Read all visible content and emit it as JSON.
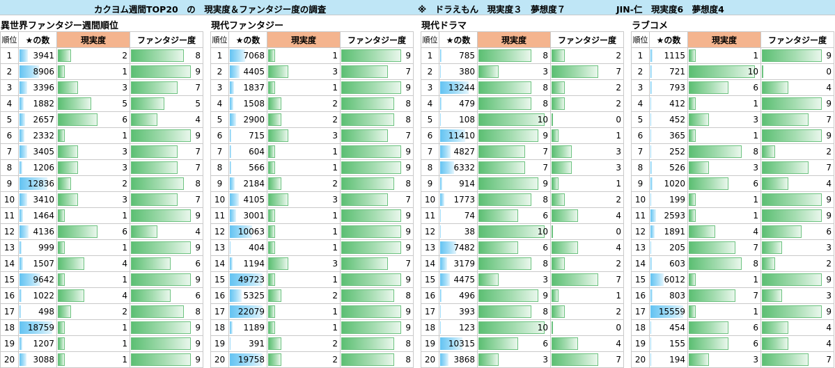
{
  "title": {
    "main": "カクヨム週間TOP20　の　現実度＆ファンタジー度の調査",
    "note1": "※　ドラえもん　現実度３　夢想度７",
    "note2": "JIN-仁　現実度6　夢想度4"
  },
  "headers": {
    "rank": "順位",
    "stars": "★の数",
    "reality": "現実度",
    "fantasy": "ファンタジー度"
  },
  "sections": [
    {
      "title": "異世界ファンタジー週間順位",
      "rows": [
        {
          "rank": "1",
          "stars": 3941,
          "reality": 2,
          "fantasy": 8
        },
        {
          "rank": "2",
          "stars": 8906,
          "reality": 1,
          "fantasy": 9
        },
        {
          "rank": "3",
          "stars": 3396,
          "reality": 3,
          "fantasy": 7
        },
        {
          "rank": "4",
          "stars": 1882,
          "reality": 5,
          "fantasy": 5
        },
        {
          "rank": "5",
          "stars": 2657,
          "reality": 6,
          "fantasy": 4
        },
        {
          "rank": "6",
          "stars": 2332,
          "reality": 1,
          "fantasy": 9
        },
        {
          "rank": "7",
          "stars": 3405,
          "reality": 3,
          "fantasy": 7
        },
        {
          "rank": "8",
          "stars": 1206,
          "reality": 3,
          "fantasy": 7
        },
        {
          "rank": "9",
          "stars": 12836,
          "reality": 2,
          "fantasy": 8
        },
        {
          "rank": "10",
          "stars": 3410,
          "reality": 3,
          "fantasy": 7
        },
        {
          "rank": "11",
          "stars": 1464,
          "reality": 1,
          "fantasy": 9
        },
        {
          "rank": "12",
          "stars": 4136,
          "reality": 6,
          "fantasy": 4
        },
        {
          "rank": "13",
          "stars": 999,
          "reality": 1,
          "fantasy": 9
        },
        {
          "rank": "14",
          "stars": 1507,
          "reality": 4,
          "fantasy": 6
        },
        {
          "rank": "15",
          "stars": 9642,
          "reality": 1,
          "fantasy": 9
        },
        {
          "rank": "16",
          "stars": 1022,
          "reality": 4,
          "fantasy": 6
        },
        {
          "rank": "17",
          "stars": 498,
          "reality": 2,
          "fantasy": 8
        },
        {
          "rank": "18",
          "stars": 18759,
          "reality": 1,
          "fantasy": 9
        },
        {
          "rank": "19",
          "stars": 1207,
          "reality": 1,
          "fantasy": 9
        },
        {
          "rank": "20",
          "stars": 3088,
          "reality": 1,
          "fantasy": 9
        }
      ]
    },
    {
      "title": "現代ファンタジー",
      "rows": [
        {
          "rank": "1",
          "stars": 7068,
          "reality": 1,
          "fantasy": 9
        },
        {
          "rank": "2",
          "stars": 4405,
          "reality": 3,
          "fantasy": 7
        },
        {
          "rank": "3",
          "stars": 1837,
          "reality": 1,
          "fantasy": 9
        },
        {
          "rank": "4",
          "stars": 1508,
          "reality": 2,
          "fantasy": 8
        },
        {
          "rank": "5",
          "stars": 2900,
          "reality": 2,
          "fantasy": 8
        },
        {
          "rank": "6",
          "stars": 715,
          "reality": 3,
          "fantasy": 7
        },
        {
          "rank": "7",
          "stars": 604,
          "reality": 1,
          "fantasy": 9
        },
        {
          "rank": "8",
          "stars": 566,
          "reality": 1,
          "fantasy": 9
        },
        {
          "rank": "9",
          "stars": 2184,
          "reality": 2,
          "fantasy": 8
        },
        {
          "rank": "10",
          "stars": 4105,
          "reality": 3,
          "fantasy": 7
        },
        {
          "rank": "11",
          "stars": 3001,
          "reality": 1,
          "fantasy": 9
        },
        {
          "rank": "12",
          "stars": 10063,
          "reality": 1,
          "fantasy": 9
        },
        {
          "rank": "13",
          "stars": 404,
          "reality": 1,
          "fantasy": 9
        },
        {
          "rank": "14",
          "stars": 1194,
          "reality": 3,
          "fantasy": 7
        },
        {
          "rank": "15",
          "stars": 49723,
          "reality": 1,
          "fantasy": 9
        },
        {
          "rank": "16",
          "stars": 5325,
          "reality": 2,
          "fantasy": 8
        },
        {
          "rank": "17",
          "stars": 22079,
          "reality": 1,
          "fantasy": 9
        },
        {
          "rank": "18",
          "stars": 1189,
          "reality": 1,
          "fantasy": 9
        },
        {
          "rank": "19",
          "stars": 391,
          "reality": 2,
          "fantasy": 8
        },
        {
          "rank": "20",
          "stars": 19758,
          "reality": 2,
          "fantasy": 8
        }
      ]
    },
    {
      "title": "現代ドラマ",
      "rows": [
        {
          "rank": "1",
          "stars": 785,
          "reality": 8,
          "fantasy": 2
        },
        {
          "rank": "2",
          "stars": 380,
          "reality": 3,
          "fantasy": 7
        },
        {
          "rank": "3",
          "stars": 13244,
          "reality": 8,
          "fantasy": 2
        },
        {
          "rank": "4",
          "stars": 479,
          "reality": 8,
          "fantasy": 2
        },
        {
          "rank": "5",
          "stars": 108,
          "reality": 10,
          "fantasy": 0
        },
        {
          "rank": "6",
          "stars": 11410,
          "reality": 9,
          "fantasy": 1
        },
        {
          "rank": "7",
          "stars": 4827,
          "reality": 7,
          "fantasy": 3
        },
        {
          "rank": "8",
          "stars": 6332,
          "reality": 7,
          "fantasy": 3
        },
        {
          "rank": "9",
          "stars": 914,
          "reality": 9,
          "fantasy": 1
        },
        {
          "rank": "10",
          "stars": 1773,
          "reality": 8,
          "fantasy": 2
        },
        {
          "rank": "11",
          "stars": 74,
          "reality": 6,
          "fantasy": 4
        },
        {
          "rank": "12",
          "stars": 38,
          "reality": 10,
          "fantasy": 0
        },
        {
          "rank": "13",
          "stars": 7482,
          "reality": 6,
          "fantasy": 4
        },
        {
          "rank": "14",
          "stars": 3179,
          "reality": 8,
          "fantasy": 2
        },
        {
          "rank": "15",
          "stars": 4475,
          "reality": 3,
          "fantasy": 7
        },
        {
          "rank": "16",
          "stars": 496,
          "reality": 9,
          "fantasy": 1
        },
        {
          "rank": "17",
          "stars": 393,
          "reality": 8,
          "fantasy": 2
        },
        {
          "rank": "18",
          "stars": 123,
          "reality": 10,
          "fantasy": 0
        },
        {
          "rank": "19",
          "stars": 10315,
          "reality": 6,
          "fantasy": 4
        },
        {
          "rank": "20",
          "stars": 3868,
          "reality": 3,
          "fantasy": 7
        }
      ]
    },
    {
      "title": "ラブコメ",
      "rows": [
        {
          "rank": "1",
          "stars": 1115,
          "reality": 1,
          "fantasy": 9
        },
        {
          "rank": "2",
          "stars": 721,
          "reality": 10,
          "fantasy": 0
        },
        {
          "rank": "3",
          "stars": 793,
          "reality": 6,
          "fantasy": 4
        },
        {
          "rank": "4",
          "stars": 412,
          "reality": 1,
          "fantasy": 9
        },
        {
          "rank": "5",
          "stars": 452,
          "reality": 3,
          "fantasy": 7
        },
        {
          "rank": "6",
          "stars": 365,
          "reality": 1,
          "fantasy": 9
        },
        {
          "rank": "7",
          "stars": 252,
          "reality": 8,
          "fantasy": 2
        },
        {
          "rank": "8",
          "stars": 526,
          "reality": 3,
          "fantasy": 7
        },
        {
          "rank": "9",
          "stars": 1020,
          "reality": 6,
          "fantasy": 4
        },
        {
          "rank": "10",
          "stars": 199,
          "reality": 1,
          "fantasy": 9
        },
        {
          "rank": "11",
          "stars": 2593,
          "reality": 1,
          "fantasy": 9
        },
        {
          "rank": "12",
          "stars": 1891,
          "reality": 4,
          "fantasy": 6
        },
        {
          "rank": "13",
          "stars": 205,
          "reality": 7,
          "fantasy": 3
        },
        {
          "rank": "14",
          "stars": 603,
          "reality": 8,
          "fantasy": 2
        },
        {
          "rank": "15",
          "stars": 6012,
          "reality": 1,
          "fantasy": 9
        },
        {
          "rank": "16",
          "stars": 803,
          "reality": 7,
          "fantasy": 3
        },
        {
          "rank": "17",
          "stars": 15559,
          "reality": 1,
          "fantasy": 9
        },
        {
          "rank": "18",
          "stars": 454,
          "reality": 6,
          "fantasy": 4
        },
        {
          "rank": "19",
          "stars": 155,
          "reality": 6,
          "fantasy": 4
        },
        {
          "rank": "20",
          "stars": 194,
          "reality": 3,
          "fantasy": 7
        }
      ]
    }
  ],
  "colors": {
    "title_bg": "#bfe6f6",
    "reality_header_bg": "#f4b48e",
    "stars_bar": "#63c3f2",
    "reality_fantasy_bar": "#5cbf73"
  }
}
